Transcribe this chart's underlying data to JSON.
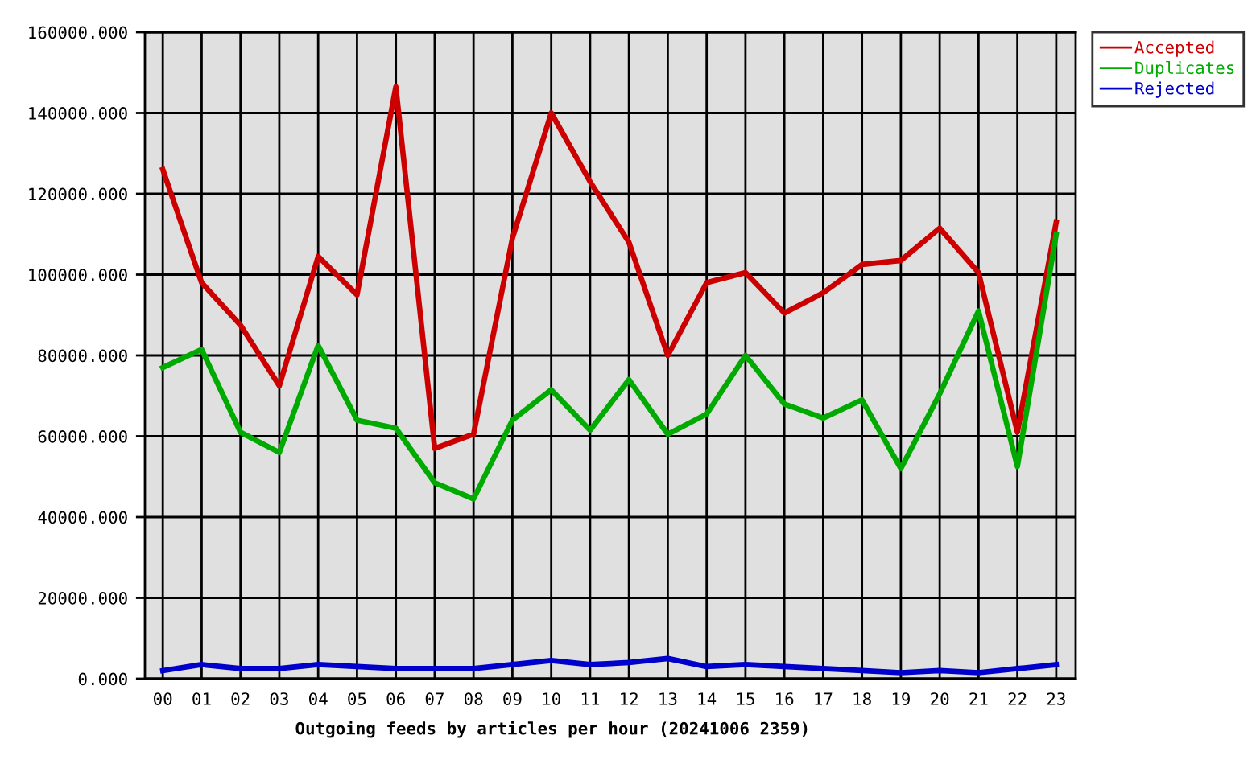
{
  "chart_data": {
    "type": "line",
    "xlabel": "Outgoing feeds by articles per hour (20241006 2359)",
    "categories": [
      "00",
      "01",
      "02",
      "03",
      "04",
      "05",
      "06",
      "07",
      "08",
      "09",
      "10",
      "11",
      "12",
      "13",
      "14",
      "15",
      "16",
      "17",
      "18",
      "19",
      "20",
      "21",
      "22",
      "23"
    ],
    "series": [
      {
        "name": "Accepted",
        "color": "#cc0000",
        "values": [
          126000,
          98000,
          87500,
          72500,
          104500,
          95000,
          146500,
          57000,
          60500,
          109000,
          140000,
          123000,
          108000,
          80000,
          98000,
          100500,
          90500,
          95500,
          102500,
          103500,
          111500,
          100500,
          61000,
          113000
        ]
      },
      {
        "name": "Duplicates",
        "color": "#00aa00",
        "values": [
          77000,
          81500,
          61000,
          56000,
          82500,
          64000,
          62000,
          48500,
          44500,
          64000,
          71500,
          61500,
          74000,
          60500,
          65500,
          80000,
          68000,
          64500,
          69000,
          52000,
          70500,
          91000,
          52500,
          110000
        ]
      },
      {
        "name": "Rejected",
        "color": "#0000cc",
        "values": [
          2000,
          3500,
          2500,
          2500,
          3500,
          3000,
          2500,
          2500,
          2500,
          3500,
          4500,
          3500,
          4000,
          5000,
          3000,
          3500,
          3000,
          2500,
          2000,
          1500,
          2000,
          1500,
          2500,
          3500
        ]
      }
    ],
    "ylim": [
      0,
      160000
    ],
    "yticks": [
      {
        "value": 0,
        "label": "0.000"
      },
      {
        "value": 20000,
        "label": "20000.000"
      },
      {
        "value": 40000,
        "label": "40000.000"
      },
      {
        "value": 60000,
        "label": "60000.000"
      },
      {
        "value": 80000,
        "label": "80000.000"
      },
      {
        "value": 100000,
        "label": "100000.000"
      },
      {
        "value": 120000,
        "label": "120000.000"
      },
      {
        "value": 140000,
        "label": "140000.000"
      },
      {
        "value": 160000,
        "label": "160000.000"
      }
    ],
    "grid": true,
    "legend": "top right",
    "marker": "none",
    "line_style": "solid"
  }
}
